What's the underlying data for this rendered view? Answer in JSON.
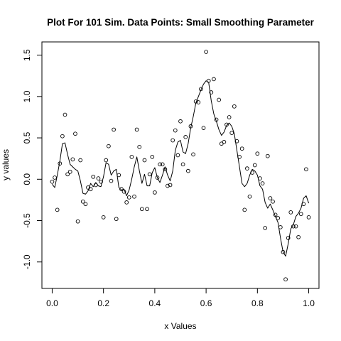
{
  "chart_data": {
    "type": "scatter",
    "title": "Plot For 101 Sim. Data Points: Small Smoothing Parameter",
    "xlabel": "x Values",
    "ylabel": "y values",
    "xlim": [
      -0.04,
      1.04
    ],
    "ylim": [
      -1.32,
      1.66
    ],
    "x_ticks": [
      0.0,
      0.2,
      0.4,
      0.6,
      0.8,
      1.0
    ],
    "x_tick_labels": [
      "0.0",
      "0.2",
      "0.4",
      "0.6",
      "0.8",
      "1.0"
    ],
    "y_ticks": [
      -1.0,
      -0.5,
      0.0,
      0.5,
      1.0,
      1.5
    ],
    "y_tick_labels": [
      "-1.0",
      "-0.5",
      "0.0",
      "0.5",
      "1.0",
      "1.5"
    ],
    "grid": false,
    "legend": "none",
    "series": [
      {
        "kind": "points",
        "x": [
          0.0,
          0.01,
          0.02,
          0.03,
          0.04,
          0.05,
          0.06,
          0.07,
          0.08,
          0.09,
          0.1,
          0.11,
          0.12,
          0.13,
          0.14,
          0.15,
          0.16,
          0.17,
          0.18,
          0.19,
          0.2,
          0.21,
          0.22,
          0.23,
          0.24,
          0.25,
          0.26,
          0.27,
          0.28,
          0.29,
          0.3,
          0.31,
          0.32,
          0.33,
          0.34,
          0.35,
          0.36,
          0.37,
          0.38,
          0.39,
          0.4,
          0.41,
          0.42,
          0.43,
          0.44,
          0.45,
          0.46,
          0.47,
          0.48,
          0.49,
          0.5,
          0.51,
          0.52,
          0.53,
          0.54,
          0.55,
          0.56,
          0.57,
          0.58,
          0.59,
          0.6,
          0.61,
          0.62,
          0.63,
          0.64,
          0.65,
          0.66,
          0.67,
          0.68,
          0.69,
          0.7,
          0.71,
          0.72,
          0.73,
          0.74,
          0.75,
          0.76,
          0.77,
          0.78,
          0.79,
          0.8,
          0.81,
          0.82,
          0.83,
          0.84,
          0.85,
          0.86,
          0.87,
          0.88,
          0.89,
          0.9,
          0.91,
          0.92,
          0.93,
          0.94,
          0.95,
          0.96,
          0.97,
          0.98,
          0.99,
          1.0
        ],
        "y": [
          -0.03,
          0.02,
          -0.37,
          0.19,
          0.52,
          0.78,
          0.06,
          0.09,
          0.24,
          0.55,
          -0.51,
          0.23,
          -0.27,
          -0.3,
          -0.1,
          -0.12,
          0.03,
          -0.07,
          0.01,
          -0.03,
          -0.46,
          0.23,
          0.4,
          -0.02,
          0.6,
          -0.48,
          0.05,
          -0.12,
          -0.15,
          -0.28,
          -0.22,
          0.27,
          -0.21,
          0.6,
          0.39,
          -0.36,
          0.23,
          -0.36,
          0.06,
          0.27,
          -0.16,
          0.02,
          0.18,
          0.18,
          0.12,
          -0.08,
          -0.07,
          0.47,
          0.59,
          0.29,
          0.7,
          0.18,
          0.51,
          0.1,
          0.64,
          0.3,
          0.94,
          0.93,
          1.09,
          0.62,
          1.54,
          1.19,
          1.05,
          1.21,
          0.72,
          0.96,
          0.43,
          0.45,
          0.66,
          0.75,
          0.56,
          0.88,
          0.46,
          0.27,
          0.37,
          -0.37,
          0.13,
          -0.21,
          0.08,
          0.17,
          0.31,
          0.01,
          -0.05,
          -0.59,
          0.28,
          -0.23,
          -0.27,
          -0.43,
          -0.47,
          -0.58,
          -0.88,
          -1.21,
          -0.71,
          -0.4,
          -0.57,
          -0.57,
          -0.7,
          -0.42,
          -0.3,
          0.12,
          -0.46
        ]
      },
      {
        "kind": "smooth-line",
        "x": [
          0.0,
          0.01,
          0.02,
          0.03,
          0.04,
          0.05,
          0.06,
          0.07,
          0.08,
          0.09,
          0.1,
          0.11,
          0.12,
          0.13,
          0.14,
          0.15,
          0.16,
          0.17,
          0.18,
          0.19,
          0.2,
          0.21,
          0.22,
          0.23,
          0.24,
          0.25,
          0.26,
          0.27,
          0.28,
          0.29,
          0.3,
          0.31,
          0.32,
          0.33,
          0.34,
          0.35,
          0.36,
          0.37,
          0.38,
          0.39,
          0.4,
          0.41,
          0.42,
          0.43,
          0.44,
          0.45,
          0.46,
          0.47,
          0.48,
          0.49,
          0.5,
          0.51,
          0.52,
          0.53,
          0.54,
          0.55,
          0.56,
          0.57,
          0.58,
          0.59,
          0.6,
          0.61,
          0.62,
          0.63,
          0.64,
          0.65,
          0.66,
          0.67,
          0.68,
          0.69,
          0.7,
          0.71,
          0.72,
          0.73,
          0.74,
          0.75,
          0.76,
          0.77,
          0.78,
          0.79,
          0.8,
          0.81,
          0.82,
          0.83,
          0.84,
          0.85,
          0.86,
          0.87,
          0.88,
          0.89,
          0.9,
          0.91,
          0.92,
          0.93,
          0.94,
          0.95,
          0.96,
          0.97,
          0.98,
          0.99,
          1.0
        ],
        "y": [
          -0.06,
          -0.1,
          0.05,
          0.22,
          0.43,
          0.44,
          0.3,
          0.18,
          0.15,
          0.12,
          0.1,
          -0.02,
          -0.17,
          -0.18,
          -0.14,
          -0.05,
          -0.09,
          -0.04,
          -0.08,
          -0.09,
          0.03,
          0.2,
          0.18,
          0.05,
          0.1,
          0.12,
          -0.1,
          -0.13,
          -0.12,
          -0.2,
          -0.13,
          0.0,
          0.15,
          0.27,
          0.1,
          -0.05,
          0.06,
          -0.08,
          -0.08,
          0.08,
          0.14,
          0.02,
          -0.04,
          0.05,
          0.15,
          0.05,
          -0.02,
          0.1,
          0.35,
          0.45,
          0.47,
          0.33,
          0.31,
          0.43,
          0.62,
          0.76,
          0.92,
          1.0,
          1.08,
          1.15,
          1.19,
          1.17,
          0.95,
          0.79,
          0.7,
          0.6,
          0.53,
          0.57,
          0.65,
          0.68,
          0.64,
          0.55,
          0.35,
          0.15,
          -0.05,
          -0.09,
          -0.05,
          0.05,
          0.12,
          0.1,
          0.05,
          -0.08,
          -0.12,
          -0.28,
          -0.35,
          -0.3,
          -0.37,
          -0.45,
          -0.52,
          -0.71,
          -0.88,
          -0.93,
          -0.78,
          -0.6,
          -0.55,
          -0.45,
          -0.41,
          -0.35,
          -0.23,
          -0.2,
          -0.29
        ]
      }
    ]
  }
}
